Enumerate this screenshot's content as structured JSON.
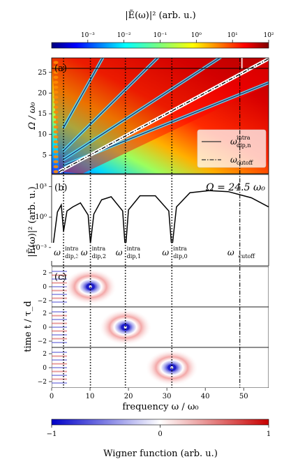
{
  "top_colorbar": {
    "title": "|Ẽ(ω)|² (arb. u.)",
    "ticks": [
      "10⁻³",
      "10⁻²",
      "10⁻¹",
      "10⁰",
      "10¹",
      "10²"
    ],
    "tick_values": [
      -3,
      -2,
      -1,
      0,
      1,
      2
    ],
    "range_log10": [
      -4,
      2
    ],
    "colormap": "jet"
  },
  "bottom_colorbar": {
    "label": "Wigner function (arb. u.)",
    "ticks": [
      "−1",
      "0",
      "1"
    ],
    "tick_values": [
      -1,
      0,
      1
    ],
    "range": [
      -1,
      1
    ],
    "colormap": "bwr"
  },
  "x_axis": {
    "label": "frequency ω / ω₀",
    "ticks": [
      "0",
      "10",
      "20",
      "30",
      "40",
      "50"
    ],
    "tick_values": [
      0,
      10,
      20,
      30,
      40,
      50
    ],
    "range": [
      0,
      56.5
    ]
  },
  "panel_a": {
    "tag": "(a)",
    "ylabel": "Ω / ω₀",
    "yticks": [
      "5",
      "10",
      "15",
      "20",
      "25"
    ],
    "ytick_values": [
      5,
      10,
      15,
      20,
      25
    ],
    "yrange": [
      0.5,
      28.5
    ],
    "legend": [
      {
        "symbol": "ω",
        "sup": "intra",
        "sub": "dip,n",
        "style": "solid"
      },
      {
        "symbol": "ω",
        "sup": "",
        "sub": "cutoff",
        "style": "dashdot"
      }
    ]
  },
  "panel_b": {
    "tag": "(b)",
    "ylabel": "|Ẽ(ω)|² (arb. u.)",
    "yticks": [
      "10⁻³",
      "10⁰",
      "10³"
    ],
    "ytick_values": [
      -3,
      0,
      3
    ],
    "yrange_log10": [
      -4.8,
      4.2
    ],
    "omega_label": "Ω = 24.5 ω₀",
    "annotations": [
      {
        "symbol": "ω",
        "sup": "intra",
        "sub": "dip,3",
        "x": 3.1
      },
      {
        "symbol": "ω",
        "sup": "intra",
        "sub": "dip,2",
        "x": 10.1
      },
      {
        "symbol": "ω",
        "sup": "intra",
        "sub": "dip,1",
        "x": 19.2
      },
      {
        "symbol": "ω",
        "sup": "intra",
        "sub": "dip,0",
        "x": 31.3
      },
      {
        "symbol": "ω",
        "sup": "",
        "sub": "cutoff",
        "x": 49.0
      }
    ]
  },
  "panel_c": {
    "tag": "(c)",
    "ylabel": "time t / τ_d",
    "yticks": [
      "2",
      "0",
      "−2"
    ],
    "ytick_values": [
      2,
      0,
      -2
    ],
    "yrange": [
      -2.9,
      2.9
    ],
    "blob_centers_x": [
      10.1,
      19.2,
      31.3
    ]
  },
  "chart_data": {
    "type": "heatmap",
    "title": "",
    "xlabel": "frequency ω / ω₀",
    "xlim": [
      0,
      56.5
    ],
    "dip_frequencies": {
      "n3": 3.1,
      "n2": 10.1,
      "n1": 19.2,
      "n0": 31.3
    },
    "cutoff_frequency_at_omega_24_5": 49.0,
    "intra_dip_lines": [
      {
        "n": 0,
        "x": [
          3,
          56.5
        ],
        "y": [
          2.4,
          22.5
        ]
      },
      {
        "n": 1,
        "x": [
          3,
          56.5
        ],
        "y": [
          3.9,
          36.2
        ]
      },
      {
        "n": 2,
        "x": [
          3,
          56.5
        ],
        "y": [
          6.0,
          55.0
        ]
      },
      {
        "n": 3,
        "x": [
          3,
          56.5
        ],
        "y": [
          11.5,
          100.0
        ]
      }
    ],
    "cutoff_line": {
      "x": [
        2,
        56.5
      ],
      "y": [
        1.0,
        28.3
      ]
    },
    "spectrum_at_omega_24_5": {
      "x": [
        0.3,
        1.5,
        2.5,
        3.1,
        4.0,
        5.5,
        7.5,
        9.5,
        10.1,
        11.0,
        13.0,
        15.5,
        18.5,
        19.2,
        20.0,
        23.0,
        27.0,
        30.5,
        31.3,
        32.5,
        36.0,
        41.0,
        46.0,
        49.0,
        52.0,
        56.5
      ],
      "log10_y": [
        -3.0,
        0.5,
        1.2,
        -1.4,
        0.6,
        1.0,
        1.4,
        0.2,
        -2.6,
        0.3,
        1.7,
        2.0,
        0.6,
        -3.3,
        0.7,
        2.1,
        2.1,
        0.6,
        -3.2,
        1.0,
        2.4,
        2.6,
        2.5,
        2.2,
        1.9,
        1.0
      ]
    }
  }
}
